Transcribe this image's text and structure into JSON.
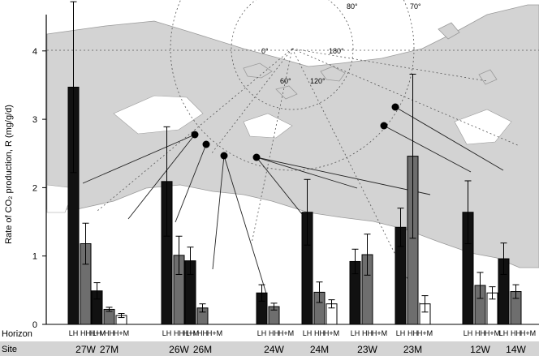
{
  "chart_data": {
    "type": "bar",
    "ylabel": "Rate of CO₂ production, R (mg/g/d)",
    "ylim": [
      0,
      4.5
    ],
    "yticks": [
      0,
      1,
      2,
      3,
      4
    ],
    "row_labels": {
      "horizon": "Horizon",
      "site": "Site"
    },
    "series": [
      {
        "name": "LH",
        "color": "#111111"
      },
      {
        "name": "HH",
        "color": "#6e6e6e"
      },
      {
        "name": "H+M",
        "color": "#ffffff"
      }
    ],
    "groups": [
      {
        "site": "27W",
        "horizons": [
          "LH",
          "HH",
          "H+M"
        ],
        "values": [
          3.47,
          1.18,
          null
        ],
        "errors": [
          1.25,
          0.3,
          null
        ]
      },
      {
        "site": "27M",
        "horizons": [
          "LH",
          "HH",
          "H+M"
        ],
        "values": [
          0.49,
          0.22,
          0.13
        ],
        "errors": [
          0.12,
          0.03,
          0.03
        ]
      },
      {
        "site": "26W",
        "horizons": [
          "LH",
          "HH",
          "H+M"
        ],
        "values": [
          2.09,
          1.01,
          null
        ],
        "errors": [
          0.8,
          0.28,
          null
        ]
      },
      {
        "site": "26M",
        "horizons": [
          "LH",
          "HH",
          "H+M"
        ],
        "values": [
          0.93,
          0.24,
          null
        ],
        "errors": [
          0.2,
          0.06,
          null
        ]
      },
      {
        "site": "24W",
        "horizons": [
          "LH",
          "HH",
          "H+M"
        ],
        "values": [
          0.46,
          0.26,
          null
        ],
        "errors": [
          0.12,
          0.05,
          null
        ]
      },
      {
        "site": "24M",
        "horizons": [
          "LH",
          "HH",
          "H+M"
        ],
        "values": [
          1.64,
          0.47,
          0.3
        ],
        "errors": [
          0.48,
          0.15,
          0.06
        ]
      },
      {
        "site": "23W",
        "horizons": [
          "LH",
          "HH",
          "H+M"
        ],
        "values": [
          0.92,
          1.02,
          null
        ],
        "errors": [
          0.18,
          0.3,
          null
        ]
      },
      {
        "site": "23M",
        "horizons": [
          "LH",
          "HH",
          "H+M"
        ],
        "values": [
          1.42,
          2.46,
          0.3
        ],
        "errors": [
          0.28,
          1.2,
          0.12
        ]
      },
      {
        "site": "12W",
        "horizons": [
          "LH",
          "HH",
          "H+M"
        ],
        "values": [
          1.64,
          0.57,
          0.46
        ],
        "errors": [
          0.46,
          0.19,
          0.09
        ]
      },
      {
        "site": "14W",
        "horizons": [
          "LH",
          "HH",
          "H+M"
        ],
        "values": [
          0.96,
          0.48,
          null
        ],
        "errors": [
          0.23,
          0.1,
          null
        ]
      }
    ],
    "map_inset": {
      "labels": [
        "0°",
        "60°",
        "120°",
        "180°",
        "80°",
        "70°"
      ]
    }
  }
}
